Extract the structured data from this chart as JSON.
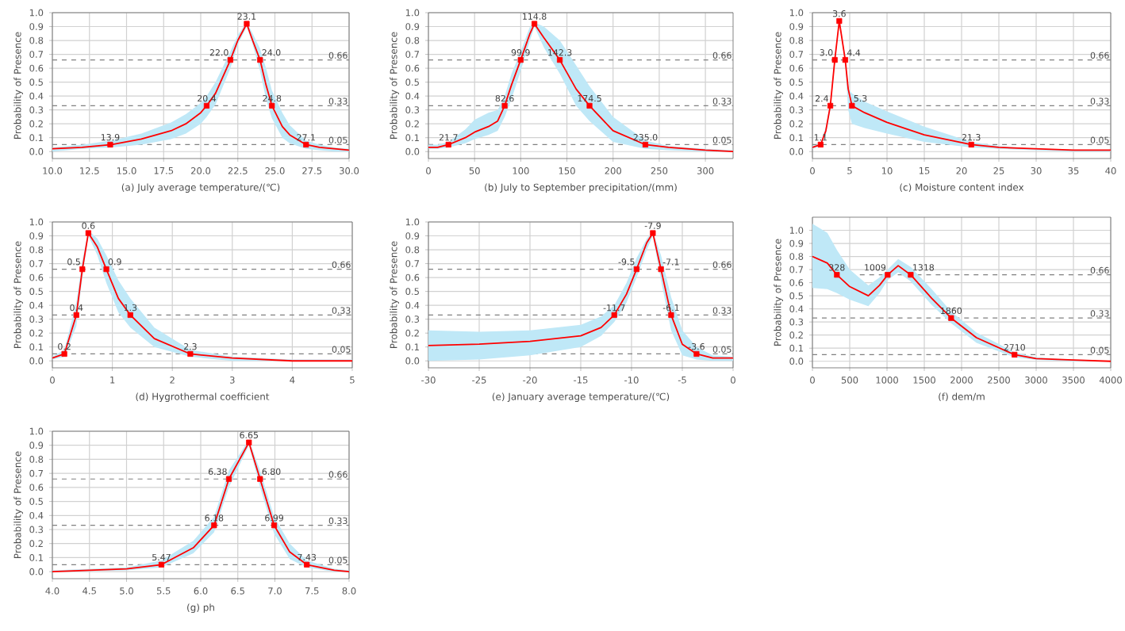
{
  "chart_data": [
    {
      "type": "line",
      "xlabel": "(a) July average temperature/(℃)",
      "ylabel": "Probability of Presence",
      "xlim": [
        10,
        30
      ],
      "ylim": [
        -0.05,
        1.0
      ],
      "xticks": [
        {
          "value": 10,
          "label": "10.0"
        },
        {
          "value": 12.5,
          "label": "12.5"
        },
        {
          "value": 15,
          "label": "15.0"
        },
        {
          "value": 17.5,
          "label": "17.5"
        },
        {
          "value": 20,
          "label": "20.0"
        },
        {
          "value": 22.5,
          "label": "22.5"
        },
        {
          "value": 25,
          "label": "25.0"
        },
        {
          "value": 27.5,
          "label": "27.5"
        },
        {
          "value": 30,
          "label": "30.0"
        }
      ],
      "yticks": [
        {
          "value": 0,
          "label": "0.0"
        },
        {
          "value": 0.1,
          "label": "0.1"
        },
        {
          "value": 0.2,
          "label": "0.2"
        },
        {
          "value": 0.3,
          "label": "0.3"
        },
        {
          "value": 0.4,
          "label": "0.4"
        },
        {
          "value": 0.5,
          "label": "0.5"
        },
        {
          "value": 0.6,
          "label": "0.6"
        },
        {
          "value": 0.7,
          "label": "0.7"
        },
        {
          "value": 0.8,
          "label": "0.8"
        },
        {
          "value": 0.9,
          "label": "0.9"
        },
        {
          "value": 1.0,
          "label": "1.0"
        }
      ],
      "grid": true,
      "ref_lines": [
        {
          "axis": "y",
          "value": 0.66,
          "label": "0.66",
          "color": "#808080",
          "line_style": "dashed"
        },
        {
          "axis": "y",
          "value": 0.33,
          "label": "0.33",
          "color": "#808080",
          "line_style": "dashed"
        },
        {
          "axis": "y",
          "value": 0.05,
          "label": "0.05",
          "color": "#808080",
          "line_style": "dashed"
        }
      ],
      "annotations": [
        {
          "text": "13.9",
          "x": 13.9,
          "y": 0.05
        },
        {
          "text": "20.4",
          "x": 20.4,
          "y": 0.33
        },
        {
          "text": "22.0",
          "x": 22.0,
          "y": 0.66
        },
        {
          "text": "23.1",
          "x": 23.1,
          "y": 0.92
        },
        {
          "text": "24.0",
          "x": 24.0,
          "y": 0.66
        },
        {
          "text": "24.8",
          "x": 24.8,
          "y": 0.33
        },
        {
          "text": "27.1",
          "x": 27.1,
          "y": 0.05
        }
      ],
      "series": [
        {
          "type": "line",
          "color": "#ff0000",
          "x": [
            10,
            12,
            14,
            16,
            18,
            19,
            20,
            20.4,
            21,
            22,
            22.5,
            23.1,
            23.5,
            24,
            24.4,
            24.8,
            25.5,
            26,
            27.1,
            28,
            29,
            30
          ],
          "values": [
            0.02,
            0.03,
            0.05,
            0.09,
            0.15,
            0.2,
            0.28,
            0.33,
            0.42,
            0.66,
            0.8,
            0.92,
            0.8,
            0.66,
            0.48,
            0.33,
            0.18,
            0.12,
            0.05,
            0.03,
            0.02,
            0.01
          ],
          "lower": [
            0.0,
            0.02,
            0.03,
            0.05,
            0.09,
            0.13,
            0.2,
            0.25,
            0.34,
            0.6,
            0.77,
            0.9,
            0.77,
            0.58,
            0.38,
            0.24,
            0.1,
            0.06,
            0.02,
            0.01,
            0.0,
            0.0
          ],
          "upper": [
            0.03,
            0.05,
            0.08,
            0.13,
            0.21,
            0.27,
            0.35,
            0.4,
            0.5,
            0.72,
            0.84,
            0.93,
            0.85,
            0.74,
            0.6,
            0.44,
            0.28,
            0.19,
            0.08,
            0.05,
            0.03,
            0.02
          ]
        },
        {
          "type": "scatter",
          "marker": "square",
          "color": "#ff0000",
          "x": [
            13.9,
            20.4,
            22.0,
            23.1,
            24.0,
            24.8,
            27.1
          ],
          "values": [
            0.05,
            0.33,
            0.66,
            0.92,
            0.66,
            0.33,
            0.05
          ]
        }
      ]
    },
    {
      "type": "line",
      "xlabel": "(b) July to September precipitation/(mm)",
      "ylabel": "Probability of Presence",
      "xlim": [
        0,
        330
      ],
      "ylim": [
        -0.05,
        1.0
      ],
      "xticks": [
        0,
        50,
        100,
        150,
        200,
        250,
        300
      ],
      "yticks": [
        {
          "value": 0,
          "label": "0.0"
        },
        {
          "value": 0.1,
          "label": "0.1"
        },
        {
          "value": 0.2,
          "label": "0.2"
        },
        {
          "value": 0.3,
          "label": "0.3"
        },
        {
          "value": 0.4,
          "label": "0.4"
        },
        {
          "value": 0.5,
          "label": "0.5"
        },
        {
          "value": 0.6,
          "label": "0.6"
        },
        {
          "value": 0.7,
          "label": "0.7"
        },
        {
          "value": 0.8,
          "label": "0.8"
        },
        {
          "value": 0.9,
          "label": "0.9"
        },
        {
          "value": 1.0,
          "label": "1.0"
        }
      ],
      "grid": true,
      "ref_lines": [
        {
          "axis": "y",
          "value": 0.66,
          "label": "0.66",
          "color": "#808080",
          "line_style": "dashed"
        },
        {
          "axis": "y",
          "value": 0.33,
          "label": "0.33",
          "color": "#808080",
          "line_style": "dashed"
        },
        {
          "axis": "y",
          "value": 0.05,
          "label": "0.05",
          "color": "#808080",
          "line_style": "dashed"
        }
      ],
      "annotations": [
        {
          "text": "21.7",
          "x": 21.7,
          "y": 0.05
        },
        {
          "text": "82.6",
          "x": 82.6,
          "y": 0.33
        },
        {
          "text": "99.9",
          "x": 99.9,
          "y": 0.66
        },
        {
          "text": "114.8",
          "x": 114.8,
          "y": 0.92
        },
        {
          "text": "142.3",
          "x": 142.3,
          "y": 0.66
        },
        {
          "text": "174.5",
          "x": 174.5,
          "y": 0.33
        },
        {
          "text": "235.0",
          "x": 235.0,
          "y": 0.05
        }
      ],
      "series": [
        {
          "type": "line",
          "color": "#ff0000",
          "x": [
            0,
            10,
            21.7,
            40,
            50,
            65,
            75,
            82.6,
            90,
            99.9,
            110,
            114.8,
            125,
            142.3,
            160,
            174.5,
            200,
            235,
            260,
            300,
            330
          ],
          "values": [
            0.03,
            0.03,
            0.05,
            0.1,
            0.14,
            0.18,
            0.22,
            0.33,
            0.48,
            0.66,
            0.85,
            0.92,
            0.82,
            0.66,
            0.45,
            0.33,
            0.15,
            0.05,
            0.03,
            0.01,
            0.0
          ],
          "lower": [
            0.02,
            0.02,
            0.03,
            0.06,
            0.09,
            0.12,
            0.15,
            0.25,
            0.38,
            0.58,
            0.8,
            0.9,
            0.75,
            0.56,
            0.33,
            0.22,
            0.07,
            0.02,
            0.01,
            0.0,
            0.0
          ],
          "upper": [
            0.05,
            0.05,
            0.07,
            0.16,
            0.23,
            0.28,
            0.3,
            0.4,
            0.56,
            0.72,
            0.9,
            0.93,
            0.9,
            0.8,
            0.62,
            0.47,
            0.25,
            0.08,
            0.04,
            0.02,
            0.01
          ]
        },
        {
          "type": "scatter",
          "marker": "square",
          "color": "#ff0000",
          "x": [
            21.7,
            82.6,
            99.9,
            114.8,
            142.3,
            174.5,
            235.0
          ],
          "values": [
            0.05,
            0.33,
            0.66,
            0.92,
            0.66,
            0.33,
            0.05
          ]
        }
      ]
    },
    {
      "type": "line",
      "xlabel": "(c) Moisture content index",
      "ylabel": "Probability of Presence",
      "xlim": [
        0,
        40
      ],
      "ylim": [
        -0.05,
        1.0
      ],
      "xticks": [
        0,
        5,
        10,
        15,
        20,
        25,
        30,
        35,
        40
      ],
      "yticks": [
        {
          "value": 0,
          "label": "0.0"
        },
        {
          "value": 0.1,
          "label": "0.1"
        },
        {
          "value": 0.2,
          "label": "0.2"
        },
        {
          "value": 0.3,
          "label": "0.3"
        },
        {
          "value": 0.4,
          "label": "0.4"
        },
        {
          "value": 0.5,
          "label": "0.5"
        },
        {
          "value": 0.6,
          "label": "0.6"
        },
        {
          "value": 0.7,
          "label": "0.7"
        },
        {
          "value": 0.8,
          "label": "0.8"
        },
        {
          "value": 0.9,
          "label": "0.9"
        },
        {
          "value": 1.0,
          "label": "1.0"
        }
      ],
      "grid": true,
      "ref_lines": [
        {
          "axis": "y",
          "value": 0.66,
          "label": "0.66",
          "color": "#808080",
          "line_style": "dashed"
        },
        {
          "axis": "y",
          "value": 0.33,
          "label": "0.33",
          "color": "#808080",
          "line_style": "dashed"
        },
        {
          "axis": "y",
          "value": 0.05,
          "label": "0.05",
          "color": "#808080",
          "line_style": "dashed"
        }
      ],
      "annotations": [
        {
          "text": "1.1",
          "x": 1.1,
          "y": 0.05
        },
        {
          "text": "2.4",
          "x": 2.4,
          "y": 0.33
        },
        {
          "text": "3.0",
          "x": 3.0,
          "y": 0.66
        },
        {
          "text": "3.6",
          "x": 3.6,
          "y": 0.94
        },
        {
          "text": "4.4",
          "x": 4.4,
          "y": 0.66
        },
        {
          "text": "5.3",
          "x": 5.3,
          "y": 0.33
        },
        {
          "text": "21.3",
          "x": 21.3,
          "y": 0.05
        }
      ],
      "series": [
        {
          "type": "line",
          "color": "#ff0000",
          "x": [
            0,
            1.1,
            1.8,
            2.4,
            3.0,
            3.6,
            4.4,
            4.8,
            5.3,
            7,
            10,
            15,
            21.3,
            25,
            30,
            35,
            40
          ],
          "values": [
            0.03,
            0.05,
            0.15,
            0.33,
            0.66,
            0.94,
            0.66,
            0.45,
            0.33,
            0.28,
            0.21,
            0.12,
            0.05,
            0.03,
            0.02,
            0.01,
            0.01
          ],
          "lower": [
            0.02,
            0.04,
            0.12,
            0.3,
            0.63,
            0.93,
            0.63,
            0.3,
            0.2,
            0.17,
            0.13,
            0.07,
            0.03,
            0.02,
            0.01,
            0.0,
            0.0
          ],
          "upper": [
            0.04,
            0.06,
            0.18,
            0.36,
            0.69,
            0.95,
            0.69,
            0.45,
            0.42,
            0.36,
            0.29,
            0.18,
            0.07,
            0.04,
            0.02,
            0.01,
            0.01
          ]
        },
        {
          "type": "scatter",
          "marker": "square",
          "color": "#ff0000",
          "x": [
            1.1,
            2.4,
            3.0,
            3.6,
            4.4,
            5.3,
            21.3
          ],
          "values": [
            0.05,
            0.33,
            0.66,
            0.94,
            0.66,
            0.33,
            0.05
          ]
        }
      ]
    },
    {
      "type": "line",
      "xlabel": "(d) Hygrothermal coefficient",
      "ylabel": "Probability of Presence",
      "xlim": [
        0,
        5
      ],
      "ylim": [
        -0.05,
        1.0
      ],
      "xticks": [
        0,
        1,
        2,
        3,
        4,
        5
      ],
      "yticks": [
        {
          "value": 0,
          "label": "0.0"
        },
        {
          "value": 0.1,
          "label": "0.1"
        },
        {
          "value": 0.2,
          "label": "0.2"
        },
        {
          "value": 0.3,
          "label": "0.3"
        },
        {
          "value": 0.4,
          "label": "0.4"
        },
        {
          "value": 0.5,
          "label": "0.5"
        },
        {
          "value": 0.6,
          "label": "0.6"
        },
        {
          "value": 0.7,
          "label": "0.7"
        },
        {
          "value": 0.8,
          "label": "0.8"
        },
        {
          "value": 0.9,
          "label": "0.9"
        },
        {
          "value": 1.0,
          "label": "1.0"
        }
      ],
      "grid": true,
      "ref_lines": [
        {
          "axis": "y",
          "value": 0.66,
          "label": "0.66",
          "color": "#808080",
          "line_style": "dashed"
        },
        {
          "axis": "y",
          "value": 0.33,
          "label": "0.33",
          "color": "#808080",
          "line_style": "dashed"
        },
        {
          "axis": "y",
          "value": 0.05,
          "label": "0.05",
          "color": "#808080",
          "line_style": "dashed"
        }
      ],
      "annotations": [
        {
          "text": "0.2",
          "x": 0.2,
          "y": 0.05
        },
        {
          "text": "0.4",
          "x": 0.4,
          "y": 0.33
        },
        {
          "text": "0.5",
          "x": 0.5,
          "y": 0.66
        },
        {
          "text": "0.6",
          "x": 0.6,
          "y": 0.92
        },
        {
          "text": "0.9",
          "x": 0.9,
          "y": 0.66
        },
        {
          "text": "1.3",
          "x": 1.3,
          "y": 0.33
        },
        {
          "text": "2.3",
          "x": 2.3,
          "y": 0.05
        }
      ],
      "series": [
        {
          "type": "line",
          "color": "#ff0000",
          "x": [
            0,
            0.2,
            0.4,
            0.5,
            0.6,
            0.75,
            0.9,
            1.1,
            1.3,
            1.7,
            2.3,
            3,
            4,
            5
          ],
          "values": [
            0.02,
            0.05,
            0.33,
            0.66,
            0.92,
            0.82,
            0.66,
            0.45,
            0.33,
            0.16,
            0.05,
            0.02,
            0.0,
            0.0
          ],
          "lower": [
            0.01,
            0.03,
            0.25,
            0.6,
            0.9,
            0.76,
            0.56,
            0.35,
            0.24,
            0.1,
            0.03,
            0.0,
            0.0,
            0.0
          ],
          "upper": [
            0.03,
            0.08,
            0.42,
            0.72,
            0.94,
            0.88,
            0.76,
            0.58,
            0.45,
            0.24,
            0.08,
            0.03,
            0.01,
            0.01
          ]
        },
        {
          "type": "scatter",
          "marker": "square",
          "color": "#ff0000",
          "x": [
            0.2,
            0.4,
            0.5,
            0.6,
            0.9,
            1.3,
            2.3
          ],
          "values": [
            0.05,
            0.33,
            0.66,
            0.92,
            0.66,
            0.33,
            0.05
          ]
        }
      ]
    },
    {
      "type": "line",
      "xlabel": "(e) January average temperature/(℃)",
      "ylabel": "Probability of Presence",
      "xlim": [
        -30,
        0
      ],
      "ylim": [
        -0.05,
        1.0
      ],
      "xticks": [
        -30,
        -25,
        -20,
        -15,
        -10,
        -5,
        0
      ],
      "yticks": [
        {
          "value": 0,
          "label": "0.0"
        },
        {
          "value": 0.1,
          "label": "0.1"
        },
        {
          "value": 0.2,
          "label": "0.2"
        },
        {
          "value": 0.3,
          "label": "0.3"
        },
        {
          "value": 0.4,
          "label": "0.4"
        },
        {
          "value": 0.5,
          "label": "0.5"
        },
        {
          "value": 0.6,
          "label": "0.6"
        },
        {
          "value": 0.7,
          "label": "0.7"
        },
        {
          "value": 0.8,
          "label": "0.8"
        },
        {
          "value": 0.9,
          "label": "0.9"
        },
        {
          "value": 1.0,
          "label": "1.0"
        }
      ],
      "grid": true,
      "ref_lines": [
        {
          "axis": "y",
          "value": 0.66,
          "label": "0.66",
          "color": "#808080",
          "line_style": "dashed"
        },
        {
          "axis": "y",
          "value": 0.33,
          "label": "0.33",
          "color": "#808080",
          "line_style": "dashed"
        },
        {
          "axis": "y",
          "value": 0.05,
          "label": "0.05",
          "color": "#808080",
          "line_style": "dashed"
        }
      ],
      "annotations": [
        {
          "text": "-11.7",
          "x": -11.7,
          "y": 0.33
        },
        {
          "text": "-9.5",
          "x": -9.5,
          "y": 0.66
        },
        {
          "text": "-7.9",
          "x": -7.9,
          "y": 0.92
        },
        {
          "text": "-7.1",
          "x": -7.1,
          "y": 0.66
        },
        {
          "text": "-6.1",
          "x": -6.1,
          "y": 0.33
        },
        {
          "text": "-3.6",
          "x": -3.6,
          "y": 0.05
        }
      ],
      "series": [
        {
          "type": "line",
          "color": "#ff0000",
          "x": [
            -30,
            -25,
            -20,
            -15,
            -13,
            -11.7,
            -10.5,
            -9.5,
            -8.5,
            -7.9,
            -7.1,
            -6.1,
            -5,
            -3.6,
            -2,
            0
          ],
          "values": [
            0.11,
            0.12,
            0.14,
            0.18,
            0.24,
            0.33,
            0.48,
            0.66,
            0.85,
            0.92,
            0.66,
            0.33,
            0.12,
            0.05,
            0.02,
            0.02
          ],
          "lower": [
            0.0,
            0.01,
            0.04,
            0.1,
            0.18,
            0.28,
            0.42,
            0.6,
            0.8,
            0.9,
            0.58,
            0.22,
            0.04,
            0.01,
            0.0,
            0.0
          ],
          "upper": [
            0.22,
            0.21,
            0.22,
            0.26,
            0.32,
            0.4,
            0.56,
            0.74,
            0.88,
            0.93,
            0.76,
            0.46,
            0.22,
            0.1,
            0.04,
            0.03
          ]
        },
        {
          "type": "scatter",
          "marker": "square",
          "color": "#ff0000",
          "x": [
            -11.7,
            -9.5,
            -7.9,
            -7.1,
            -6.1,
            -3.6
          ],
          "values": [
            0.33,
            0.66,
            0.92,
            0.66,
            0.33,
            0.05
          ]
        }
      ]
    },
    {
      "type": "line",
      "xlabel": "(f) dem/m",
      "ylabel": "Probability of Presence",
      "xlim": [
        0,
        4000
      ],
      "ylim": [
        -0.05,
        1.1
      ],
      "xticks": [
        0,
        500,
        1000,
        1500,
        2000,
        2500,
        3000,
        3500,
        4000
      ],
      "yticks": [
        {
          "value": 0,
          "label": "0.0"
        },
        {
          "value": 0.1,
          "label": "0.1"
        },
        {
          "value": 0.2,
          "label": "0.2"
        },
        {
          "value": 0.3,
          "label": "0.3"
        },
        {
          "value": 0.4,
          "label": "0.4"
        },
        {
          "value": 0.5,
          "label": "0.5"
        },
        {
          "value": 0.6,
          "label": "0.6"
        },
        {
          "value": 0.7,
          "label": "0.7"
        },
        {
          "value": 0.8,
          "label": "0.8"
        },
        {
          "value": 0.9,
          "label": "0.9"
        },
        {
          "value": 1.0,
          "label": "1.0"
        }
      ],
      "grid": true,
      "ref_lines": [
        {
          "axis": "y",
          "value": 0.66,
          "label": "0.66",
          "color": "#808080",
          "line_style": "dashed"
        },
        {
          "axis": "y",
          "value": 0.33,
          "label": "0.33",
          "color": "#808080",
          "line_style": "dashed"
        },
        {
          "axis": "y",
          "value": 0.05,
          "label": "0.05",
          "color": "#808080",
          "line_style": "dashed"
        }
      ],
      "annotations": [
        {
          "text": "328",
          "x": 328,
          "y": 0.66
        },
        {
          "text": "1009",
          "x": 1009,
          "y": 0.66
        },
        {
          "text": "1318",
          "x": 1318,
          "y": 0.66
        },
        {
          "text": "1860",
          "x": 1860,
          "y": 0.33
        },
        {
          "text": "2710",
          "x": 2710,
          "y": 0.05
        }
      ],
      "series": [
        {
          "type": "line",
          "color": "#ff0000",
          "x": [
            0,
            200,
            328,
            500,
            750,
            900,
            1009,
            1150,
            1318,
            1600,
            1860,
            2200,
            2710,
            3000,
            3500,
            4000
          ],
          "values": [
            0.8,
            0.75,
            0.66,
            0.57,
            0.5,
            0.58,
            0.66,
            0.73,
            0.66,
            0.48,
            0.33,
            0.18,
            0.05,
            0.02,
            0.01,
            0.0
          ],
          "lower": [
            0.56,
            0.55,
            0.52,
            0.47,
            0.42,
            0.52,
            0.62,
            0.68,
            0.61,
            0.43,
            0.29,
            0.14,
            0.03,
            0.01,
            0.0,
            0.0
          ],
          "upper": [
            1.05,
            0.98,
            0.85,
            0.7,
            0.58,
            0.64,
            0.7,
            0.78,
            0.72,
            0.55,
            0.38,
            0.22,
            0.07,
            0.03,
            0.01,
            0.0
          ]
        },
        {
          "type": "scatter",
          "marker": "square",
          "color": "#ff0000",
          "x": [
            328,
            1009,
            1318,
            1860,
            2710
          ],
          "values": [
            0.66,
            0.66,
            0.66,
            0.33,
            0.05
          ]
        }
      ]
    },
    {
      "type": "line",
      "xlabel": "(g) ph",
      "ylabel": "Probability of Presence",
      "xlim": [
        4,
        8
      ],
      "ylim": [
        -0.05,
        1.0
      ],
      "xticks": [
        {
          "value": 4,
          "label": "4.0"
        },
        {
          "value": 4.5,
          "label": "4.5"
        },
        {
          "value": 5,
          "label": "5.0"
        },
        {
          "value": 5.5,
          "label": "5.5"
        },
        {
          "value": 6,
          "label": "6.0"
        },
        {
          "value": 6.5,
          "label": "6.5"
        },
        {
          "value": 7,
          "label": "7.0"
        },
        {
          "value": 7.5,
          "label": "7.5"
        },
        {
          "value": 8,
          "label": "8.0"
        }
      ],
      "yticks": [
        {
          "value": 0,
          "label": "0.0"
        },
        {
          "value": 0.1,
          "label": "0.1"
        },
        {
          "value": 0.2,
          "label": "0.2"
        },
        {
          "value": 0.3,
          "label": "0.3"
        },
        {
          "value": 0.4,
          "label": "0.4"
        },
        {
          "value": 0.5,
          "label": "0.5"
        },
        {
          "value": 0.6,
          "label": "0.6"
        },
        {
          "value": 0.7,
          "label": "0.7"
        },
        {
          "value": 0.8,
          "label": "0.8"
        },
        {
          "value": 0.9,
          "label": "0.9"
        },
        {
          "value": 1.0,
          "label": "1.0"
        }
      ],
      "grid": true,
      "ref_lines": [
        {
          "axis": "y",
          "value": 0.66,
          "label": "0.66",
          "color": "#808080",
          "line_style": "dashed"
        },
        {
          "axis": "y",
          "value": 0.33,
          "label": "0.33",
          "color": "#808080",
          "line_style": "dashed"
        },
        {
          "axis": "y",
          "value": 0.05,
          "label": "0.05",
          "color": "#808080",
          "line_style": "dashed"
        }
      ],
      "annotations": [
        {
          "text": "5.47",
          "x": 5.47,
          "y": 0.05
        },
        {
          "text": "6.18",
          "x": 6.18,
          "y": 0.33
        },
        {
          "text": "6.38",
          "x": 6.38,
          "y": 0.66
        },
        {
          "text": "6.65",
          "x": 6.65,
          "y": 0.92
        },
        {
          "text": "6.80",
          "x": 6.8,
          "y": 0.66
        },
        {
          "text": "6.99",
          "x": 6.99,
          "y": 0.33
        },
        {
          "text": "7.43",
          "x": 7.43,
          "y": 0.05
        }
      ],
      "series": [
        {
          "type": "line",
          "color": "#ff0000",
          "x": [
            4,
            5,
            5.47,
            5.9,
            6.18,
            6.38,
            6.65,
            6.8,
            6.99,
            7.2,
            7.43,
            7.8,
            8
          ],
          "values": [
            0.0,
            0.02,
            0.05,
            0.17,
            0.33,
            0.66,
            0.92,
            0.66,
            0.33,
            0.14,
            0.05,
            0.01,
            0.0
          ],
          "lower": [
            0,
            0.01,
            0.03,
            0.13,
            0.28,
            0.6,
            0.9,
            0.6,
            0.27,
            0.09,
            0.03,
            0,
            0
          ],
          "upper": [
            0.01,
            0.03,
            0.08,
            0.22,
            0.39,
            0.72,
            0.94,
            0.72,
            0.39,
            0.2,
            0.08,
            0.02,
            0.01
          ]
        },
        {
          "type": "scatter",
          "marker": "square",
          "color": "#ff0000",
          "x": [
            5.47,
            6.18,
            6.38,
            6.65,
            6.8,
            6.99,
            7.43
          ],
          "values": [
            0.05,
            0.33,
            0.66,
            0.92,
            0.66,
            0.33,
            0.05
          ]
        }
      ]
    }
  ]
}
